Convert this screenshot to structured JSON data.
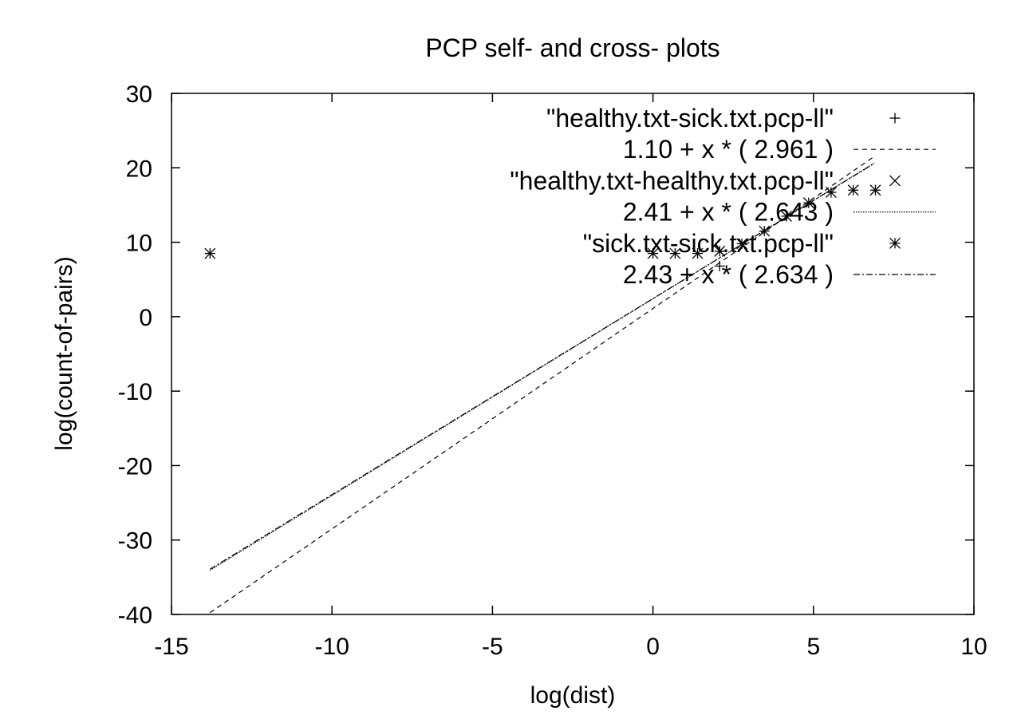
{
  "chart_data": {
    "type": "scatter",
    "title": "PCP self- and cross- plots",
    "xlabel": "log(dist)",
    "ylabel": "log(count-of-pairs)",
    "xlim": [
      -15,
      10
    ],
    "ylim": [
      -40,
      30
    ],
    "xticks": [
      -15,
      -10,
      -5,
      0,
      5,
      10
    ],
    "yticks": [
      30,
      20,
      10,
      0,
      -10,
      -20,
      -30,
      -40
    ],
    "grid": false,
    "legend_position": "top-right",
    "series": [
      {
        "name": "\"healthy.txt-sick.txt.pcp-ll\"",
        "kind": "points",
        "marker": "plus",
        "points": [
          [
            2.08,
            6.8
          ]
        ]
      },
      {
        "name": "1.10  + x * (  2.961 )",
        "kind": "line",
        "intercept": 1.1,
        "slope": 2.961,
        "x_range": [
          -13.8,
          6.9
        ],
        "dash": "6,5"
      },
      {
        "name": "\"healthy.txt-healthy.txt.pcp-ll\"",
        "kind": "points",
        "marker": "cross",
        "points": []
      },
      {
        "name": "2.41  + x * (  2.643 )",
        "kind": "line",
        "intercept": 2.41,
        "slope": 2.643,
        "x_range": [
          -13.8,
          6.9
        ],
        "dash": "1.5,1.5"
      },
      {
        "name": "\"sick.txt-sick.txt.pcp-ll\"",
        "kind": "points",
        "marker": "star",
        "points": [
          [
            -13.8,
            8.5
          ],
          [
            0.0,
            8.5
          ],
          [
            0.69,
            8.5
          ],
          [
            1.39,
            8.5
          ],
          [
            2.08,
            8.8
          ],
          [
            2.77,
            9.8
          ],
          [
            3.47,
            11.5
          ],
          [
            4.16,
            13.5
          ],
          [
            4.85,
            15.3
          ],
          [
            5.55,
            16.7
          ],
          [
            6.24,
            17.0
          ],
          [
            6.93,
            17.0
          ]
        ]
      },
      {
        "name": "2.43  + x * (  2.634 )",
        "kind": "line",
        "intercept": 2.43,
        "slope": 2.634,
        "x_range": [
          -13.8,
          6.9
        ],
        "dash": "8,3,2,3"
      }
    ]
  }
}
